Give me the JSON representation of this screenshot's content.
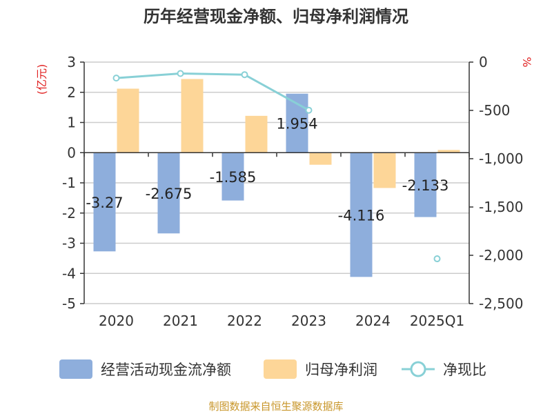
{
  "chart_data": {
    "type": "bar",
    "title": "历年经营现金净额、归母净利润情况",
    "categories": [
      "2020",
      "2021",
      "2022",
      "2023",
      "2024",
      "2025Q1"
    ],
    "left_axis": {
      "unit": "(亿元)",
      "min": -5,
      "max": 3,
      "step": 1,
      "ticks": [
        "3",
        "2",
        "1",
        "0",
        "-1",
        "-2",
        "-3",
        "-4",
        "-5"
      ]
    },
    "right_axis": {
      "unit": "%",
      "min": -2500,
      "max": 0,
      "step": 500,
      "ticks": [
        "0",
        "-500",
        "-1,000",
        "-1,500",
        "-2,000",
        "-2,500"
      ]
    },
    "grid": true,
    "legend_position": "bottom",
    "series": [
      {
        "name": "经营活动现金流净额",
        "kind": "bar",
        "axis": "left",
        "color": "#8eaedc",
        "values": [
          -3.27,
          -2.675,
          -1.585,
          1.954,
          -4.116,
          -2.133
        ],
        "labels": [
          "-3.27",
          "-2.675",
          "-1.585",
          "1.954",
          "-4.116",
          "-2.133"
        ]
      },
      {
        "name": "归母净利润",
        "kind": "bar",
        "axis": "left",
        "color": "#fdd698",
        "values": [
          2.12,
          2.44,
          1.22,
          -0.4,
          -1.17,
          0.09
        ]
      },
      {
        "name": "净现比",
        "kind": "line",
        "axis": "right",
        "color": "#88d0d6",
        "values": [
          -165,
          -118,
          -130,
          -498,
          null,
          -2036
        ]
      }
    ]
  },
  "source": "制图数据来自恒生聚源数据库"
}
